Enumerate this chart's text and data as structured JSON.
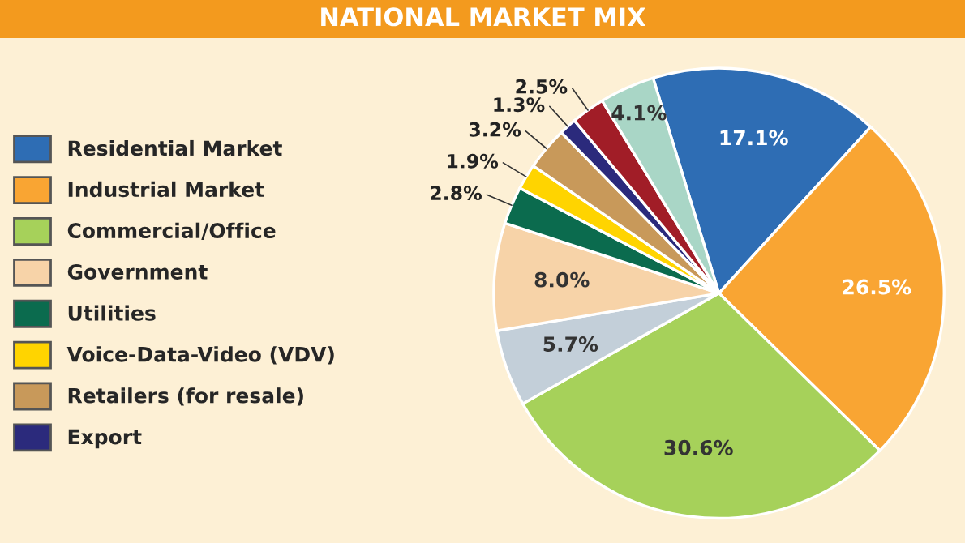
{
  "chart_data": {
    "type": "pie",
    "title": "NATIONAL MARKET MIX",
    "categories": [
      "Residential Market",
      "Industrial Market",
      "Commercial/Office",
      null,
      "Government",
      "Utilities",
      "Voice-Data-Video (VDV)",
      "Retailers (for resale)",
      "Export",
      null,
      null
    ],
    "values": [
      17.1,
      26.5,
      30.6,
      5.7,
      8.0,
      2.8,
      1.9,
      3.2,
      1.3,
      2.5,
      4.1
    ],
    "value_labels": [
      "17.1%",
      "26.5%",
      "30.6%",
      "5.7%",
      "8.0%",
      "2.8%",
      "1.9%",
      "3.2%",
      "1.3%",
      "2.5%",
      "4.1%"
    ],
    "colors": [
      "#2e6db4",
      "#f9a533",
      "#a6d15a",
      "#c3cfd9",
      "#f7d3a8",
      "#0b6b4e",
      "#ffd400",
      "#c8995a",
      "#2b2a7c",
      "#a11d27",
      "#a9d6c6"
    ],
    "legend": "left"
  }
}
